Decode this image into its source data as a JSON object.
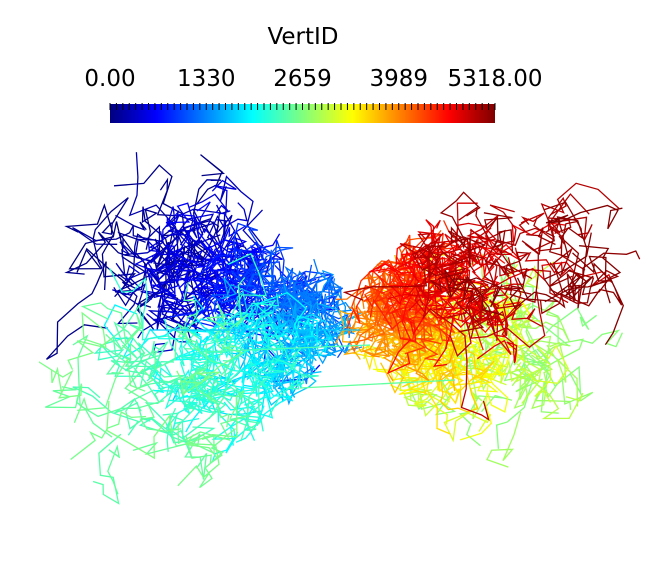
{
  "chart_data": {
    "type": "scatter",
    "title": "VertID",
    "colorbar": {
      "tick_labels": [
        "0.00",
        "1330",
        "2659",
        "3989",
        "5318.00"
      ],
      "tick_values": [
        0,
        1330,
        2659,
        3989,
        5318
      ],
      "range": [
        0,
        5318
      ],
      "colormap": "jet",
      "placement": "top-center"
    },
    "plot": {
      "kind": "polyline-mesh",
      "description_count": 5318,
      "clusters": [
        {
          "name": "",
          "vert_range": [
            0,
            1330
          ],
          "region": "upper-left"
        },
        {
          "name": "",
          "vert_range": [
            1330,
            2659
          ],
          "region": "lower-left"
        },
        {
          "name": "",
          "vert_range": [
            2659,
            3989
          ],
          "region": "lower-right"
        },
        {
          "name": "",
          "vert_range": [
            3989,
            5318
          ],
          "region": "upper-right"
        }
      ]
    },
    "grid": false,
    "legend": "top-center"
  },
  "colors": {
    "background": "#ffffff",
    "text": "#000000",
    "jet_stops": [
      "#00007f",
      "#0000ff",
      "#00ffff",
      "#ffff00",
      "#ff0000",
      "#7f0000"
    ]
  }
}
